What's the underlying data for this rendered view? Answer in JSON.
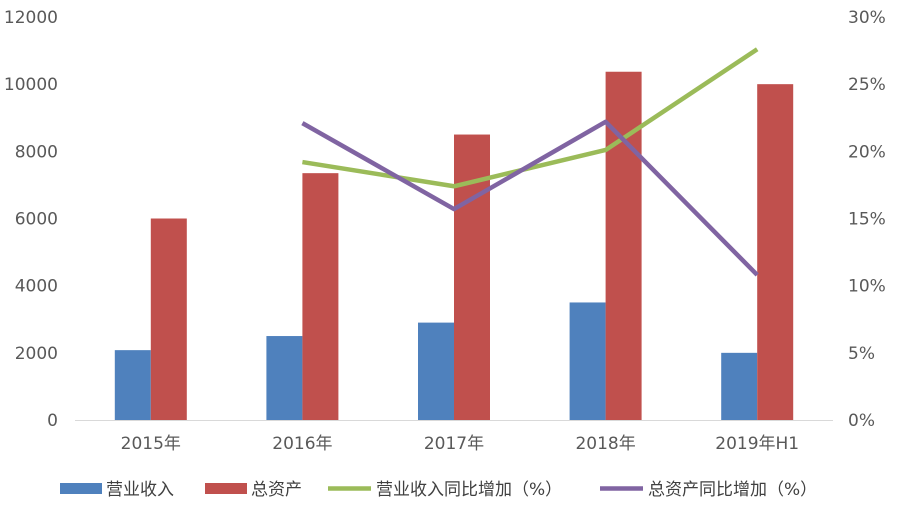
{
  "chart_data": {
    "type": "bar",
    "title": "",
    "categories": [
      "2015年",
      "2016年",
      "2017年",
      "2018年",
      "2019年H1"
    ],
    "y_left": {
      "min": 0,
      "max": 12000,
      "ticks": [
        "0",
        "2000",
        "4000",
        "6000",
        "8000",
        "10000",
        "12000"
      ]
    },
    "y_right": {
      "min": 0,
      "max": 30,
      "unit": "%",
      "ticks": [
        "0%",
        "5%",
        "10%",
        "15%",
        "20%",
        "25%",
        "30%"
      ]
    },
    "series": [
      {
        "name": "营业收入",
        "kind": "bar",
        "axis": "left",
        "color": "#4F81BD",
        "values": [
          2080,
          2500,
          2900,
          3500,
          2000
        ]
      },
      {
        "name": "总资产",
        "kind": "bar",
        "axis": "left",
        "color": "#C0504D",
        "values": [
          6000,
          7350,
          8500,
          10370,
          10000
        ]
      },
      {
        "name": "营业收入同比增加（%）",
        "kind": "line",
        "axis": "right",
        "color": "#9BBB59",
        "values": [
          null,
          19.2,
          17.4,
          20.1,
          27.6
        ]
      },
      {
        "name": "总资产同比增加（%）",
        "kind": "line",
        "axis": "right",
        "color": "#8064A2",
        "values": [
          null,
          22.1,
          15.7,
          22.2,
          10.8
        ]
      }
    ],
    "grid": false,
    "legend_position": "bottom"
  }
}
